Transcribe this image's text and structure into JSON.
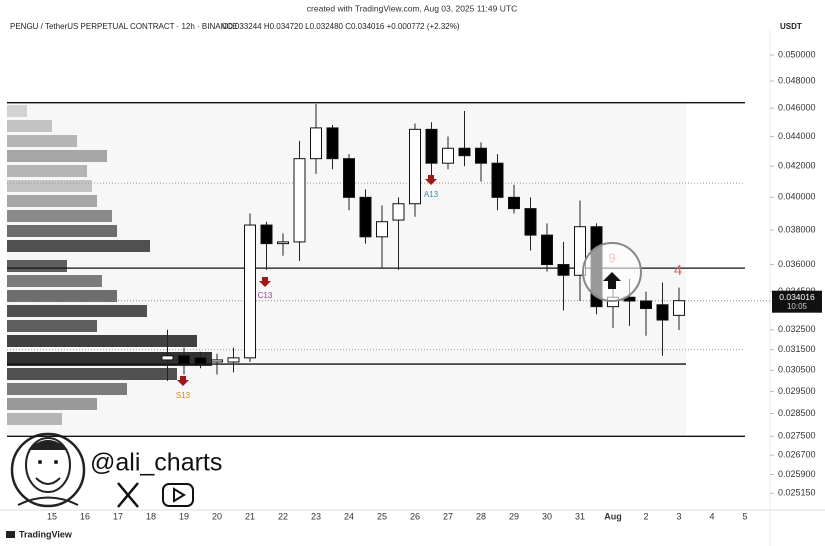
{
  "page": {
    "watermark": "created with TradingView.com, Aug 03, 2025 11:49 UTC",
    "brand": "TradingView",
    "handle": "@ali_charts"
  },
  "chart_data": {
    "type": "candlestick",
    "title": "PENGU / TetherUS PERPETUAL CONTRACT · 12h · BINANCE",
    "ohlc_header": "O0.033244 H0.034720 L0.032480 C0.034016 +0.000772 (+2.32%)",
    "currency": "USDT",
    "log_scale": true,
    "up_color": "#ffffff",
    "down_color": "#000000",
    "categories": [
      "15",
      null,
      "16",
      null,
      "17",
      null,
      "18",
      null,
      "19",
      null,
      "20",
      null,
      "21",
      null,
      "22",
      null,
      "23",
      null,
      "24",
      null,
      "25",
      null,
      "26",
      null,
      "27",
      null,
      "28",
      null,
      "29",
      null,
      "30",
      null,
      "31",
      null,
      "Aug",
      null,
      "2",
      null,
      "3",
      null,
      "4",
      null,
      "5",
      null
    ],
    "open": [
      null,
      null,
      null,
      null,
      null,
      null,
      null,
      0.031,
      0.0312,
      0.0311,
      0.0309,
      0.0309,
      0.0311,
      0.0383,
      0.0372,
      0.0373,
      0.0425,
      0.0446,
      0.0425,
      0.04,
      0.0376,
      0.0386,
      0.0396,
      0.0445,
      0.0422,
      0.0432,
      0.0432,
      0.0422,
      0.04,
      0.0393,
      0.0377,
      0.036,
      0.0354,
      0.0382,
      0.0337,
      0.0342,
      0.034,
      0.0338,
      0.033244,
      null,
      null,
      null,
      null,
      null
    ],
    "high": [
      null,
      null,
      null,
      null,
      null,
      null,
      null,
      0.0325,
      0.0316,
      0.0314,
      0.0313,
      0.0316,
      0.039,
      0.0385,
      0.0378,
      0.0437,
      0.0463,
      0.0448,
      0.0428,
      0.0405,
      0.0395,
      0.04,
      0.0449,
      0.045,
      0.044,
      0.0458,
      0.0436,
      0.0428,
      0.0408,
      0.04,
      0.0384,
      0.0373,
      0.0398,
      0.0384,
      0.0355,
      0.0352,
      0.0345,
      0.035,
      0.03472,
      null,
      null,
      null,
      null,
      null
    ],
    "low": [
      null,
      null,
      null,
      null,
      null,
      null,
      null,
      0.03,
      0.0303,
      0.0306,
      0.0303,
      0.0304,
      0.0309,
      0.0357,
      0.0365,
      0.0362,
      0.0415,
      0.0418,
      0.0392,
      0.0372,
      0.0358,
      0.0357,
      0.0388,
      0.041,
      0.0418,
      0.042,
      0.041,
      0.0392,
      0.039,
      0.0368,
      0.0356,
      0.0335,
      0.034,
      0.0333,
      0.0326,
      0.0327,
      0.0322,
      0.0312,
      0.03248,
      null,
      null,
      null,
      null,
      null
    ],
    "close": [
      null,
      null,
      null,
      null,
      null,
      null,
      null,
      0.0312,
      0.0308,
      0.0308,
      0.031,
      0.0311,
      0.0383,
      0.0372,
      0.0373,
      0.0425,
      0.0446,
      0.0425,
      0.04,
      0.0376,
      0.0385,
      0.0396,
      0.0445,
      0.0422,
      0.0432,
      0.0427,
      0.0422,
      0.04,
      0.0393,
      0.0377,
      0.036,
      0.0354,
      0.0382,
      0.0337,
      0.0342,
      0.034,
      0.0336,
      0.033,
      0.034016,
      null,
      null,
      null,
      null,
      null
    ],
    "ylim": [
      0.0245,
      0.052
    ],
    "yticks": [
      {
        "value": 0.05,
        "label": "0.050000"
      },
      {
        "value": 0.048,
        "label": "0.048000"
      },
      {
        "value": 0.046,
        "label": "0.046000"
      },
      {
        "value": 0.044,
        "label": "0.044000"
      },
      {
        "value": 0.042,
        "label": "0.042000"
      },
      {
        "value": 0.04,
        "label": "0.040000"
      },
      {
        "value": 0.038,
        "label": "0.038000"
      },
      {
        "value": 0.036,
        "label": "0.036000"
      },
      {
        "value": 0.0345,
        "label": "0.034500"
      },
      {
        "value": 0.0325,
        "label": "0.032500"
      },
      {
        "value": 0.0315,
        "label": "0.031500"
      },
      {
        "value": 0.0305,
        "label": "0.030500"
      },
      {
        "value": 0.0295,
        "label": "0.029500"
      },
      {
        "value": 0.0285,
        "label": "0.028500"
      },
      {
        "value": 0.0275,
        "label": "0.027500"
      },
      {
        "value": 0.0267,
        "label": "0.026700"
      },
      {
        "value": 0.0259,
        "label": "0.025900"
      },
      {
        "value": 0.02515,
        "label": "0.025150"
      }
    ],
    "levels": [
      0.0464,
      0.0358,
      0.0308,
      0.0275
    ],
    "dotted_levels": [
      0.0409,
      0.0315
    ],
    "last_price": {
      "value": 0.034016,
      "label": "0.034016"
    },
    "countdown": "10:05",
    "annotations": [
      "C13",
      "A13",
      "S13",
      "9",
      "4"
    ]
  }
}
